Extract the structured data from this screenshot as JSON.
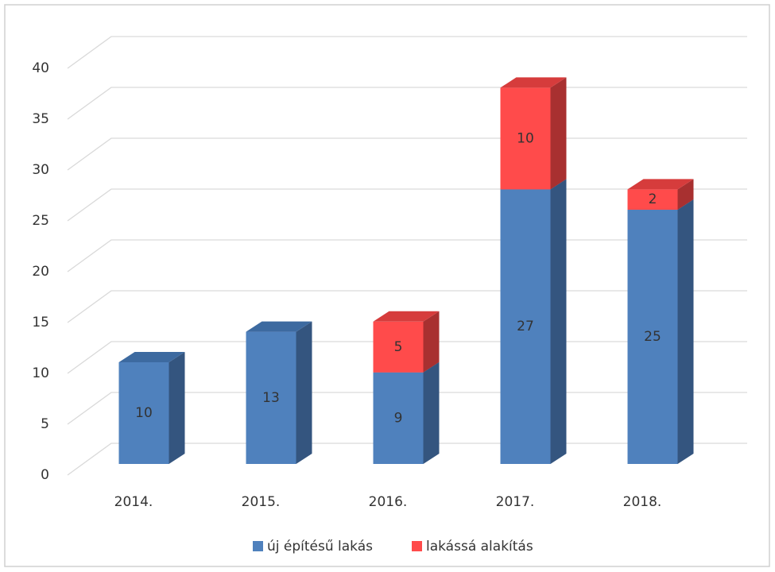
{
  "chart_data": {
    "type": "bar3d_stacked",
    "categories": [
      "2014.",
      "2015.",
      "2016.",
      "2017.",
      "2018."
    ],
    "series": [
      {
        "name": "új építésű lakás",
        "color": "#4f81bd",
        "values": [
          10,
          13,
          9,
          27,
          25
        ]
      },
      {
        "name": "lakássá alakítás",
        "color": "#ff4b4b",
        "values": [
          null,
          null,
          5,
          10,
          2
        ]
      }
    ],
    "ylim": [
      0,
      40
    ],
    "yticks": [
      0,
      5,
      10,
      15,
      20,
      25,
      30,
      35,
      40
    ],
    "grid": true,
    "legend": "bottom"
  }
}
